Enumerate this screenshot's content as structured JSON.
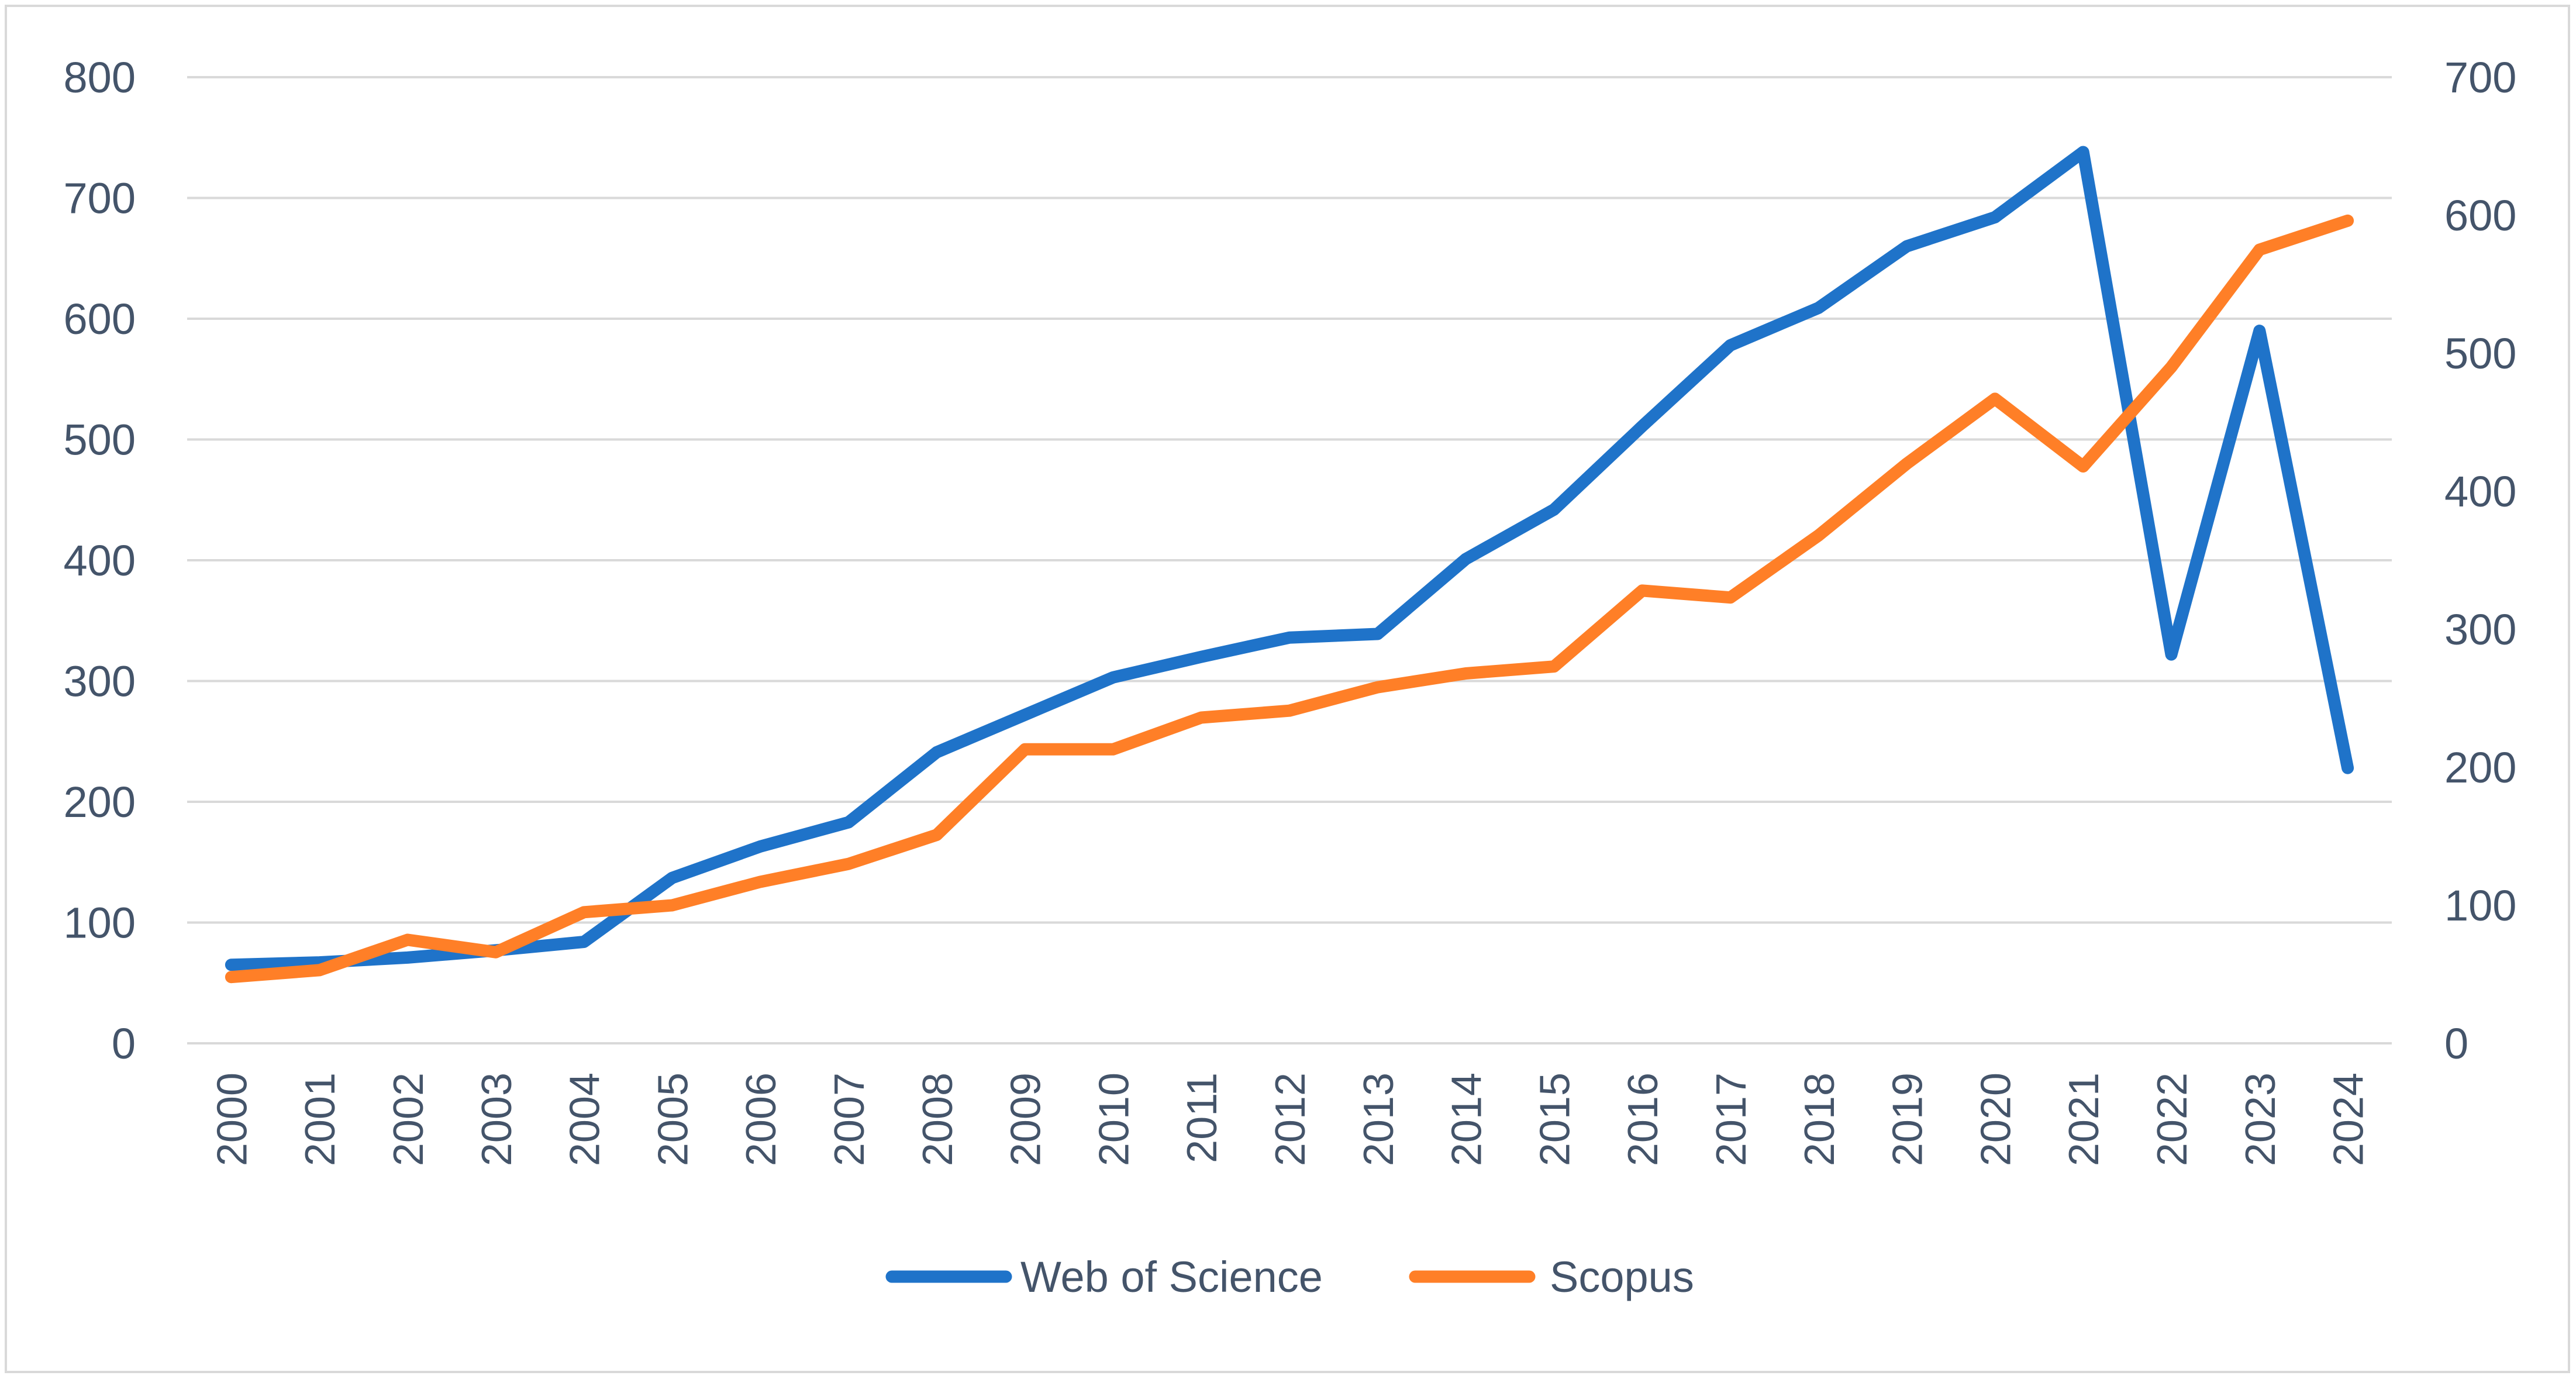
{
  "chart_data": {
    "type": "line",
    "title": "",
    "xlabel": "",
    "ylabel": "",
    "y2label": "",
    "categories": [
      "2000",
      "2001",
      "2002",
      "2003",
      "2004",
      "2005",
      "2006",
      "2007",
      "2008",
      "2009",
      "2010",
      "2011",
      "2012",
      "2013",
      "2014",
      "2015",
      "2016",
      "2017",
      "2018",
      "2019",
      "2020",
      "2021",
      "2022",
      "2023",
      "2024"
    ],
    "ylim": [
      0,
      800
    ],
    "y_ticks": [
      0,
      100,
      200,
      300,
      400,
      500,
      600,
      700,
      800
    ],
    "y2lim": [
      0,
      700
    ],
    "y2_ticks": [
      0,
      100,
      200,
      300,
      400,
      500,
      600,
      700
    ],
    "grid": true,
    "legend_position": "bottom",
    "series": [
      {
        "name": "Web of Science",
        "axis": "left",
        "color": "#1f73c9",
        "values": [
          65,
          67,
          71,
          77,
          84,
          137,
          163,
          183,
          241,
          272,
          303,
          320,
          336,
          339,
          401,
          442,
          511,
          578,
          609,
          660,
          684,
          738,
          322,
          590,
          228
        ]
      },
      {
        "name": "Scopus",
        "axis": "right",
        "color": "#ff7f27",
        "values": [
          48,
          53,
          75,
          66,
          95,
          100,
          117,
          130,
          151,
          213,
          213,
          236,
          241,
          258,
          268,
          273,
          328,
          323,
          368,
          420,
          467,
          418,
          490,
          575,
          596
        ]
      }
    ]
  }
}
